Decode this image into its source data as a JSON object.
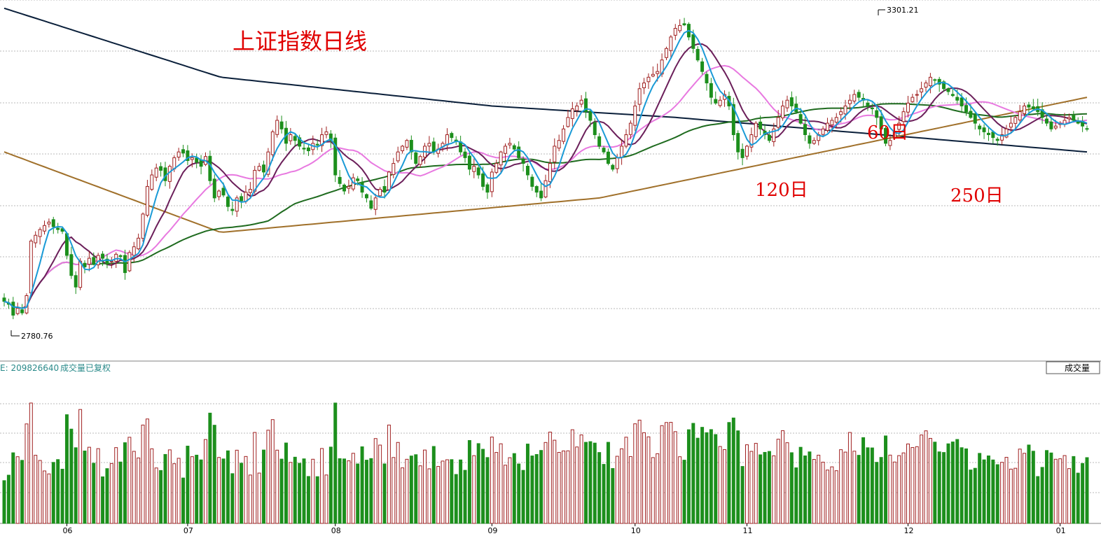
{
  "title": "上证指数日线",
  "annotations": {
    "high_label": "3301.21",
    "low_label": "2780.76",
    "ma60_label": "60日",
    "ma120_label": "120日",
    "ma250_label": "250日"
  },
  "volume_panel": {
    "info_prefix": "E: 209826640",
    "info_label": "成交量已复权",
    "button_label": "成交量"
  },
  "colors": {
    "up": "#a02020",
    "down": "#1c8f1c",
    "ma5": "#1a9ad6",
    "ma10": "#6b1f5a",
    "ma20": "#e879e0",
    "ma60": "#1f6b1f",
    "ma120": "#a0702a",
    "ma250": "#0a1f3a",
    "title": "#e00000"
  },
  "chart_data": {
    "type": "candlestick",
    "title": "上证指数日线",
    "x_ticks": [
      {
        "label": "06",
        "index": 14
      },
      {
        "label": "07",
        "index": 41
      },
      {
        "label": "08",
        "index": 74
      },
      {
        "label": "09",
        "index": 109
      },
      {
        "label": "10",
        "index": 141
      },
      {
        "label": "11",
        "index": 166
      },
      {
        "label": "12",
        "index": 202
      },
      {
        "label": "01",
        "index": 236
      }
    ],
    "ohlc_close": [
      2820,
      2815,
      2796,
      2808,
      2800,
      2830,
      2925,
      2935,
      2945,
      2952,
      2958,
      2950,
      2945,
      2942,
      2900,
      2865,
      2845,
      2890,
      2880,
      2895,
      2885,
      2900,
      2895,
      2885,
      2890,
      2902,
      2898,
      2870,
      2905,
      2915,
      2930,
      2972,
      3020,
      3040,
      3052,
      3048,
      3030,
      3055,
      3070,
      3080,
      3078,
      3065,
      3070,
      3062,
      3055,
      3072,
      3030,
      3000,
      3012,
      3005,
      2985,
      2978,
      3000,
      2995,
      3010,
      3015,
      3048,
      3055,
      3045,
      3080,
      3115,
      3135,
      3120,
      3095,
      3110,
      3100,
      3090,
      3085,
      3082,
      3095,
      3092,
      3110,
      3115,
      3100,
      3040,
      3025,
      3012,
      3020,
      3035,
      3030,
      3010,
      3000,
      2982,
      3000,
      3015,
      3010,
      3045,
      3060,
      3080,
      3090,
      3100,
      3080,
      3060,
      3072,
      3090,
      3095,
      3080,
      3085,
      3095,
      3110,
      3105,
      3098,
      3080,
      3070,
      3050,
      3055,
      3040,
      3020,
      3010,
      3045,
      3060,
      3080,
      3090,
      3095,
      3085,
      3070,
      3060,
      3040,
      3020,
      3010,
      3000,
      3030,
      3060,
      3090,
      3100,
      3120,
      3140,
      3155,
      3160,
      3170,
      3150,
      3135,
      3110,
      3090,
      3080,
      3060,
      3050,
      3070,
      3090,
      3110,
      3130,
      3160,
      3190,
      3200,
      3210,
      3215,
      3220,
      3240,
      3260,
      3280,
      3295,
      3300,
      3301,
      3280,
      3260,
      3240,
      3220,
      3200,
      3175,
      3165,
      3170,
      3180,
      3160,
      3110,
      3080,
      3070,
      3090,
      3110,
      3130,
      3120,
      3110,
      3100,
      3120,
      3140,
      3160,
      3170,
      3160,
      3150,
      3130,
      3110,
      3095,
      3100,
      3110,
      3120,
      3130,
      3135,
      3140,
      3150,
      3160,
      3170,
      3180,
      3175,
      3170,
      3160,
      3155,
      3140,
      3120,
      3095,
      3100,
      3115,
      3130,
      3150,
      3165,
      3175,
      3180,
      3190,
      3200,
      3210,
      3205,
      3198,
      3190,
      3185,
      3178,
      3170,
      3160,
      3150,
      3140,
      3130,
      3120,
      3115,
      3110,
      3105,
      3100,
      3110,
      3120,
      3130,
      3140,
      3150,
      3160,
      3158,
      3155,
      3150,
      3140,
      3130,
      3120,
      3125,
      3130,
      3135,
      3140,
      3135,
      3130,
      3125,
      3120
    ],
    "y_axis_range": [
      2760,
      3320
    ],
    "volume_axis_range": [
      0,
      260
    ]
  }
}
